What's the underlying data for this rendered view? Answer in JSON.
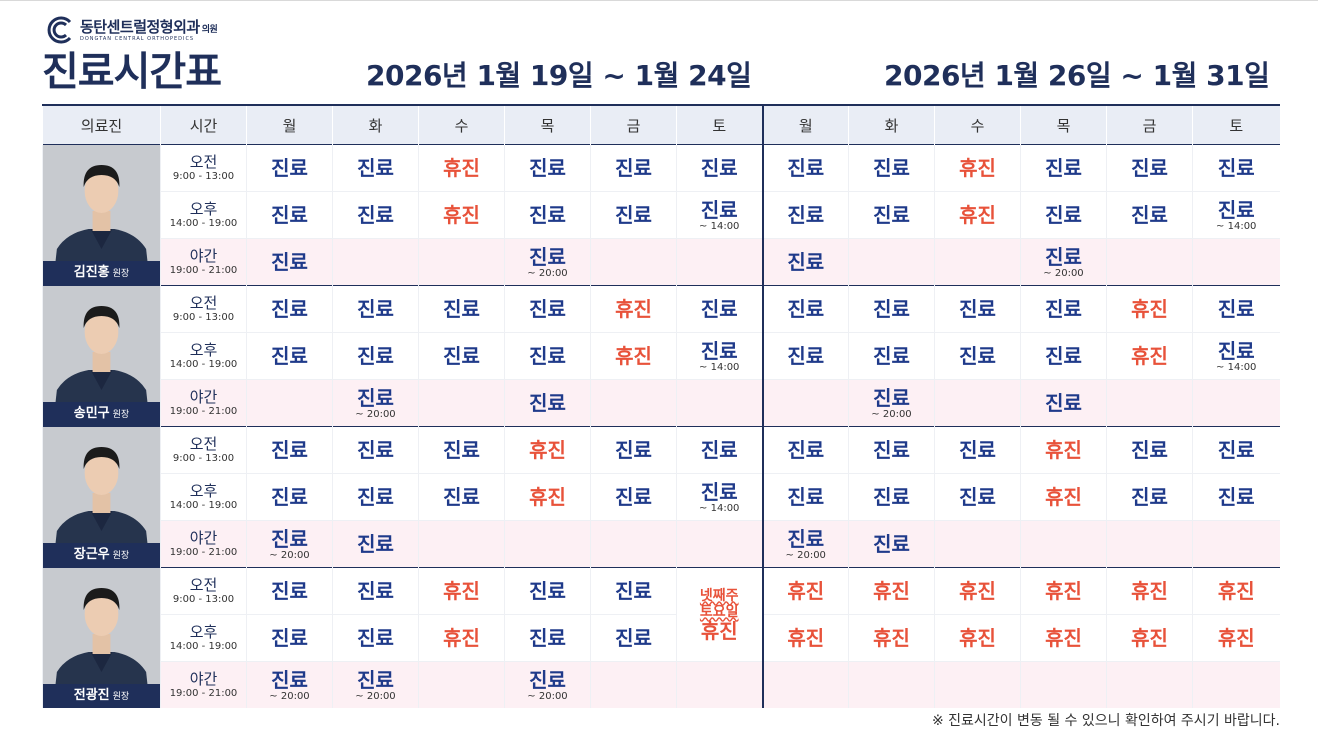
{
  "logo": {
    "name": "동탄센트럴정형외과",
    "name_small": "의원",
    "sub": "DONGTAN CENTRAL ORTHOPEDICS"
  },
  "title": "진료시간표",
  "weeks": [
    "2026년 1월 19일 ~ 1월 24일",
    "2026년 1월 26일 ~ 1월 31일"
  ],
  "headers": [
    "의료진",
    "시간",
    "월",
    "화",
    "수",
    "목",
    "금",
    "토",
    "월",
    "화",
    "수",
    "목",
    "금",
    "토"
  ],
  "periods": [
    {
      "label": "오전",
      "hours": "9:00 - 13:00"
    },
    {
      "label": "오후",
      "hours": "14:00 - 19:00"
    },
    {
      "label": "야간",
      "hours": "19:00 - 21:00"
    }
  ],
  "title_suffix": "원장",
  "colors": {
    "navy": "#1f2f5a",
    "clinic": "#1f3a8a",
    "off": "#e8523a",
    "night_bg": "#fdf0f4",
    "header_bg": "#e9edf5"
  },
  "doctors": [
    {
      "name": "김진홍",
      "rows": [
        [
          [
            "진료",
            ""
          ],
          [
            "진료",
            ""
          ],
          [
            "휴진",
            ""
          ],
          [
            "진료",
            ""
          ],
          [
            "진료",
            ""
          ],
          [
            "진료",
            ""
          ],
          [
            "진료",
            ""
          ],
          [
            "진료",
            ""
          ],
          [
            "휴진",
            ""
          ],
          [
            "진료",
            ""
          ],
          [
            "진료",
            ""
          ],
          [
            "진료",
            ""
          ]
        ],
        [
          [
            "진료",
            ""
          ],
          [
            "진료",
            ""
          ],
          [
            "휴진",
            ""
          ],
          [
            "진료",
            ""
          ],
          [
            "진료",
            ""
          ],
          [
            "진료",
            "~ 14:00"
          ],
          [
            "진료",
            ""
          ],
          [
            "진료",
            ""
          ],
          [
            "휴진",
            ""
          ],
          [
            "진료",
            ""
          ],
          [
            "진료",
            ""
          ],
          [
            "진료",
            "~ 14:00"
          ]
        ],
        [
          [
            "진료",
            ""
          ],
          [
            "",
            ""
          ],
          [
            "",
            ""
          ],
          [
            "진료",
            "~ 20:00"
          ],
          [
            "",
            ""
          ],
          [
            "",
            ""
          ],
          [
            "진료",
            ""
          ],
          [
            "",
            ""
          ],
          [
            "",
            ""
          ],
          [
            "진료",
            "~ 20:00"
          ],
          [
            "",
            ""
          ],
          [
            "",
            ""
          ]
        ]
      ]
    },
    {
      "name": "송민구",
      "rows": [
        [
          [
            "진료",
            ""
          ],
          [
            "진료",
            ""
          ],
          [
            "진료",
            ""
          ],
          [
            "진료",
            ""
          ],
          [
            "휴진",
            ""
          ],
          [
            "진료",
            ""
          ],
          [
            "진료",
            ""
          ],
          [
            "진료",
            ""
          ],
          [
            "진료",
            ""
          ],
          [
            "진료",
            ""
          ],
          [
            "휴진",
            ""
          ],
          [
            "진료",
            ""
          ]
        ],
        [
          [
            "진료",
            ""
          ],
          [
            "진료",
            ""
          ],
          [
            "진료",
            ""
          ],
          [
            "진료",
            ""
          ],
          [
            "휴진",
            ""
          ],
          [
            "진료",
            "~ 14:00"
          ],
          [
            "진료",
            ""
          ],
          [
            "진료",
            ""
          ],
          [
            "진료",
            ""
          ],
          [
            "진료",
            ""
          ],
          [
            "휴진",
            ""
          ],
          [
            "진료",
            "~ 14:00"
          ]
        ],
        [
          [
            "",
            ""
          ],
          [
            "진료",
            "~ 20:00"
          ],
          [
            "",
            ""
          ],
          [
            "진료",
            ""
          ],
          [
            "",
            ""
          ],
          [
            "",
            ""
          ],
          [
            "",
            ""
          ],
          [
            "진료",
            "~ 20:00"
          ],
          [
            "",
            ""
          ],
          [
            "진료",
            ""
          ],
          [
            "",
            ""
          ],
          [
            "",
            ""
          ]
        ]
      ]
    },
    {
      "name": "장근우",
      "rows": [
        [
          [
            "진료",
            ""
          ],
          [
            "진료",
            ""
          ],
          [
            "진료",
            ""
          ],
          [
            "휴진",
            ""
          ],
          [
            "진료",
            ""
          ],
          [
            "진료",
            ""
          ],
          [
            "진료",
            ""
          ],
          [
            "진료",
            ""
          ],
          [
            "진료",
            ""
          ],
          [
            "휴진",
            ""
          ],
          [
            "진료",
            ""
          ],
          [
            "진료",
            ""
          ]
        ],
        [
          [
            "진료",
            ""
          ],
          [
            "진료",
            ""
          ],
          [
            "진료",
            ""
          ],
          [
            "휴진",
            ""
          ],
          [
            "진료",
            ""
          ],
          [
            "진료",
            "~ 14:00"
          ],
          [
            "진료",
            ""
          ],
          [
            "진료",
            ""
          ],
          [
            "진료",
            ""
          ],
          [
            "휴진",
            ""
          ],
          [
            "진료",
            ""
          ],
          [
            "진료",
            ""
          ]
        ],
        [
          [
            "진료",
            "~ 20:00"
          ],
          [
            "진료",
            ""
          ],
          [
            "",
            ""
          ],
          [
            "",
            ""
          ],
          [
            "",
            ""
          ],
          [
            "",
            ""
          ],
          [
            "진료",
            "~ 20:00"
          ],
          [
            "진료",
            ""
          ],
          [
            "",
            ""
          ],
          [
            "",
            ""
          ],
          [
            "",
            ""
          ],
          [
            "",
            ""
          ]
        ]
      ]
    },
    {
      "name": "전광진",
      "rows": [
        [
          [
            "진료",
            ""
          ],
          [
            "진료",
            ""
          ],
          [
            "휴진",
            ""
          ],
          [
            "진료",
            ""
          ],
          [
            "진료",
            ""
          ],
          [
            "SPECIAL",
            ""
          ],
          [
            "휴진",
            ""
          ],
          [
            "휴진",
            ""
          ],
          [
            "휴진",
            ""
          ],
          [
            "휴진",
            ""
          ],
          [
            "휴진",
            ""
          ],
          [
            "휴진",
            ""
          ]
        ],
        [
          [
            "진료",
            ""
          ],
          [
            "진료",
            ""
          ],
          [
            "휴진",
            ""
          ],
          [
            "진료",
            ""
          ],
          [
            "진료",
            ""
          ],
          [
            "SKIP",
            ""
          ],
          [
            "휴진",
            ""
          ],
          [
            "휴진",
            ""
          ],
          [
            "휴진",
            ""
          ],
          [
            "휴진",
            ""
          ],
          [
            "휴진",
            ""
          ],
          [
            "휴진",
            ""
          ]
        ],
        [
          [
            "진료",
            "~ 20:00"
          ],
          [
            "진료",
            "~ 20:00"
          ],
          [
            "",
            ""
          ],
          [
            "진료",
            "~ 20:00"
          ],
          [
            "",
            ""
          ],
          [
            "",
            ""
          ],
          [
            "",
            ""
          ],
          [
            "",
            ""
          ],
          [
            "",
            ""
          ],
          [
            "",
            ""
          ],
          [
            "",
            ""
          ],
          [
            "",
            ""
          ]
        ]
      ]
    }
  ],
  "special_note": {
    "line1": "넷째주",
    "line2": "토요일",
    "line3": "휴진"
  },
  "footer": "※ 진료시간이 변동 될 수 있으니 확인하여 주시기 바랍니다."
}
